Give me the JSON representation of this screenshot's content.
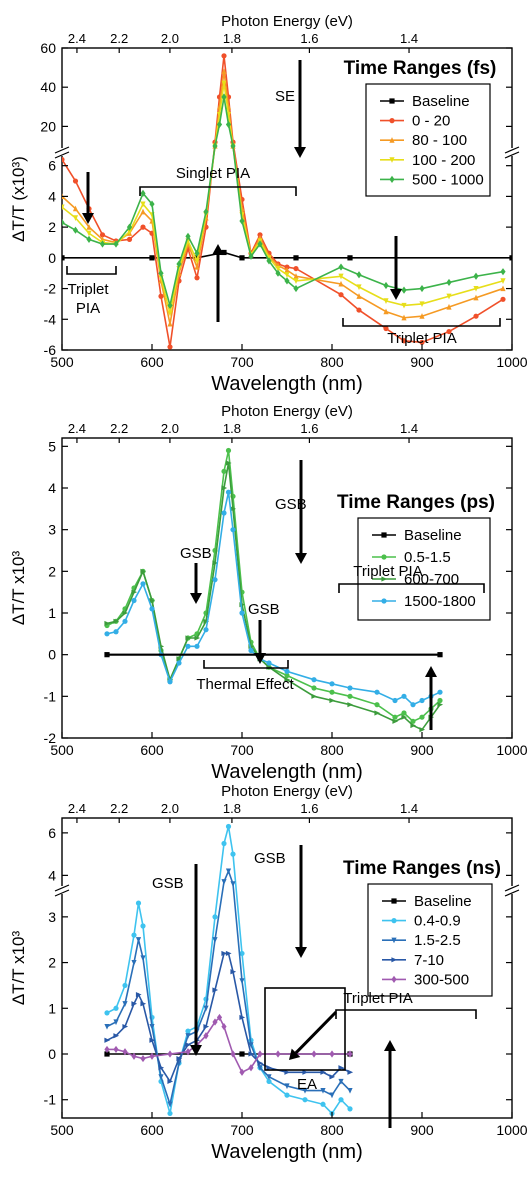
{
  "colors": {
    "baseline": "#000000",
    "fs_0_20": "#f0502a",
    "fs_80_100": "#f59a23",
    "fs_100_200": "#e7de1a",
    "fs_500_1000": "#3cb34a",
    "ps_05_15": "#4cc04c",
    "ps_600_700": "#3c9c3c",
    "ps_1500_1800": "#33aee6",
    "ns_04_09": "#3ec3ef",
    "ns_15_25": "#2a6fb8",
    "ns_7_10": "#2958a6",
    "ns_300_500": "#a05ab0"
  },
  "chart_data": [
    {
      "type": "line",
      "top_axis_label": "Photon Energy (eV)",
      "top_ticks": [
        "2.4",
        "2.2",
        "2.0",
        "1.8",
        "1.6",
        "1.4"
      ],
      "xlabel": "Wavelength (nm)",
      "ylabel": "ΔT/T (x10³)",
      "xlim": [
        500,
        1000
      ],
      "x_ticks": [
        500,
        600,
        700,
        800,
        900,
        1000
      ],
      "ylim_lower": [
        -6,
        6.5
      ],
      "ylim_upper": [
        10,
        60
      ],
      "y_ticks_lower": [
        -6,
        -4,
        -2,
        0,
        2,
        4,
        6
      ],
      "y_ticks_upper": [
        20,
        40,
        60
      ],
      "axis_break": true,
      "legend_title": "Time Ranges (fs)",
      "legend_position": "top-right",
      "annotations": [
        "SE",
        "Singlet PIA",
        "Triplet PIA",
        "Triplet PIA"
      ],
      "annotation_lines": [
        [
          "Triplet",
          "PIA"
        ]
      ],
      "series": [
        {
          "name": "Baseline",
          "color": "#000000",
          "marker": "square",
          "x": [
            500,
            600,
            650,
            680,
            700,
            760,
            820,
            1000
          ],
          "y": [
            0,
            0,
            0,
            0.35,
            0,
            0,
            0,
            0
          ]
        },
        {
          "name": "0 - 20",
          "color": "#f0502a",
          "marker": "circle",
          "x": [
            500,
            515,
            530,
            545,
            560,
            575,
            590,
            600,
            610,
            620,
            630,
            640,
            650,
            660,
            670,
            675,
            680,
            685,
            690,
            700,
            710,
            720,
            730,
            740,
            750,
            760,
            810,
            830,
            860,
            880,
            900,
            930,
            960,
            990
          ],
          "y": [
            6.4,
            5.0,
            3.2,
            1.5,
            1.1,
            1.2,
            2.0,
            1.6,
            -2.5,
            -5.8,
            -1.5,
            0.6,
            -1.3,
            2.0,
            12,
            35,
            56,
            35,
            12,
            3.8,
            0.3,
            1.5,
            0.3,
            -0.4,
            -0.6,
            -0.7,
            -2.4,
            -3.4,
            -4.6,
            -5.4,
            -5.5,
            -4.8,
            -3.8,
            -2.7
          ]
        },
        {
          "name": "80 - 100",
          "color": "#f59a23",
          "marker": "triangle-up",
          "x": [
            500,
            515,
            530,
            545,
            560,
            575,
            590,
            600,
            610,
            620,
            630,
            640,
            650,
            660,
            670,
            675,
            680,
            685,
            690,
            700,
            710,
            720,
            730,
            740,
            750,
            760,
            810,
            830,
            860,
            880,
            900,
            930,
            960,
            990
          ],
          "y": [
            4.0,
            3.2,
            2.0,
            1.2,
            1.0,
            1.6,
            3.0,
            2.4,
            -1.5,
            -4.3,
            -1.0,
            0.9,
            -0.6,
            2.6,
            10,
            30,
            48,
            30,
            10,
            3.2,
            0.2,
            1.3,
            0.1,
            -0.5,
            -0.8,
            -1.2,
            -1.7,
            -2.5,
            -3.5,
            -3.9,
            -3.8,
            -3.2,
            -2.6,
            -2.0
          ]
        },
        {
          "name": "100 - 200",
          "color": "#e7de1a",
          "marker": "triangle-down",
          "x": [
            500,
            515,
            530,
            545,
            560,
            575,
            590,
            600,
            610,
            620,
            630,
            640,
            650,
            660,
            670,
            675,
            680,
            685,
            690,
            700,
            710,
            720,
            730,
            740,
            750,
            760,
            810,
            830,
            860,
            880,
            900,
            930,
            960,
            990
          ],
          "y": [
            3.3,
            2.6,
            1.6,
            1.0,
            0.9,
            1.7,
            3.5,
            2.8,
            -1.3,
            -3.6,
            -0.7,
            1.1,
            -0.2,
            2.8,
            9,
            26,
            42,
            26,
            9,
            2.8,
            0.2,
            1.1,
            0.0,
            -0.7,
            -1.1,
            -1.5,
            -1.2,
            -1.9,
            -2.8,
            -3.1,
            -3.0,
            -2.5,
            -2.0,
            -1.5
          ]
        },
        {
          "name": "500 - 1000",
          "color": "#3cb34a",
          "marker": "diamond",
          "x": [
            500,
            515,
            530,
            545,
            560,
            575,
            590,
            600,
            610,
            620,
            630,
            640,
            650,
            660,
            670,
            675,
            680,
            685,
            690,
            700,
            710,
            720,
            730,
            740,
            750,
            760,
            810,
            830,
            860,
            880,
            900,
            930,
            960,
            990
          ],
          "y": [
            2.3,
            1.8,
            1.2,
            0.9,
            0.9,
            2.0,
            4.2,
            3.5,
            -1.0,
            -3.1,
            -0.4,
            1.4,
            0.3,
            3.0,
            8,
            21,
            35,
            21,
            8,
            2.4,
            0.1,
            0.9,
            -0.2,
            -1.0,
            -1.5,
            -2.0,
            -0.6,
            -1.1,
            -1.8,
            -2.1,
            -2.0,
            -1.6,
            -1.2,
            -0.9
          ]
        }
      ]
    },
    {
      "type": "line",
      "top_axis_label": "Photon Energy (eV)",
      "top_ticks": [
        "2.4",
        "2.2",
        "2.0",
        "1.8",
        "1.6",
        "1.4"
      ],
      "xlabel": "Wavelength (nm)",
      "ylabel": "ΔT/T x10³",
      "xlim": [
        500,
        1000
      ],
      "ylim": [
        -2,
        5.2
      ],
      "x_ticks": [
        500,
        600,
        700,
        800,
        900,
        1000
      ],
      "y_ticks": [
        -2,
        -1,
        0,
        1,
        2,
        3,
        4,
        5
      ],
      "legend_title": "Time Ranges (ps)",
      "legend_position": "top-right",
      "annotations": [
        "GSB",
        "GSB",
        "GSB",
        "Thermal Effect",
        "Triplet PIA"
      ],
      "series": [
        {
          "name": "Baseline",
          "color": "#000000",
          "marker": "square",
          "x": [
            550,
            920
          ],
          "y": [
            0,
            0
          ]
        },
        {
          "name": "0.5-1.5",
          "color": "#4cc04c",
          "marker": "circle",
          "x": [
            550,
            560,
            570,
            580,
            590,
            600,
            610,
            620,
            630,
            640,
            650,
            660,
            670,
            680,
            685,
            690,
            700,
            710,
            720,
            730,
            750,
            780,
            800,
            820,
            850,
            870,
            880,
            890,
            900,
            910,
            920
          ],
          "y": [
            0.7,
            0.8,
            1.1,
            1.6,
            2.0,
            1.3,
            0.1,
            -0.6,
            -0.1,
            0.4,
            0.5,
            1.0,
            2.5,
            4.4,
            4.9,
            3.8,
            1.5,
            0.3,
            -0.1,
            -0.3,
            -0.5,
            -0.8,
            -0.9,
            -1.0,
            -1.2,
            -1.5,
            -1.4,
            -1.6,
            -1.5,
            -1.3,
            -1.1
          ]
        },
        {
          "name": "600-700",
          "color": "#3c9c3c",
          "marker": "triangle-right",
          "x": [
            550,
            560,
            570,
            580,
            590,
            600,
            610,
            620,
            630,
            640,
            650,
            660,
            670,
            680,
            685,
            690,
            700,
            710,
            720,
            730,
            750,
            780,
            800,
            820,
            850,
            870,
            880,
            890,
            900,
            910,
            920
          ],
          "y": [
            0.75,
            0.8,
            1.0,
            1.5,
            2.0,
            1.3,
            0.2,
            -0.6,
            -0.1,
            0.4,
            0.4,
            0.8,
            2.2,
            4.0,
            4.6,
            3.5,
            1.2,
            0.2,
            -0.1,
            -0.3,
            -0.6,
            -1.0,
            -1.1,
            -1.2,
            -1.4,
            -1.6,
            -1.5,
            -1.7,
            -1.8,
            -1.5,
            -1.2
          ]
        },
        {
          "name": "1500-1800",
          "color": "#33aee6",
          "marker": "circle",
          "x": [
            550,
            560,
            570,
            580,
            590,
            600,
            610,
            620,
            630,
            640,
            650,
            660,
            670,
            680,
            685,
            690,
            700,
            710,
            720,
            730,
            750,
            780,
            800,
            820,
            850,
            870,
            880,
            890,
            900,
            910,
            920
          ],
          "y": [
            0.5,
            0.55,
            0.8,
            1.3,
            1.7,
            1.1,
            0.0,
            -0.65,
            -0.2,
            0.2,
            0.2,
            0.6,
            1.8,
            3.4,
            3.9,
            3.0,
            1.0,
            0.1,
            -0.1,
            -0.2,
            -0.4,
            -0.6,
            -0.7,
            -0.8,
            -0.9,
            -1.1,
            -1.0,
            -1.2,
            -1.1,
            -1.0,
            -0.9
          ]
        }
      ]
    },
    {
      "type": "line",
      "top_axis_label": "Photon Energy (eV)",
      "top_ticks": [
        "2.4",
        "2.2",
        "2.0",
        "1.8",
        "1.6",
        "1.4"
      ],
      "xlabel": "Wavelength (nm)",
      "ylabel": "ΔT/T x10³",
      "xlim": [
        500,
        1000
      ],
      "ylim_lower": [
        -1.4,
        3.5
      ],
      "ylim_upper": [
        3.5,
        6.7
      ],
      "x_ticks": [
        500,
        600,
        700,
        800,
        900,
        1000
      ],
      "y_ticks_lower": [
        -1,
        0,
        1,
        2,
        3
      ],
      "y_ticks_upper": [
        4,
        6
      ],
      "axis_break": true,
      "legend_title": "Time Ranges (ns)",
      "legend_position": "top-right",
      "annotations": [
        "GSB",
        "GSB",
        "Triplet PIA",
        "EA"
      ],
      "series": [
        {
          "name": "Baseline",
          "color": "#000000",
          "marker": "square",
          "x": [
            550,
            700,
            820
          ],
          "y": [
            0,
            0,
            0
          ]
        },
        {
          "name": "0.4-0.9",
          "color": "#3ec3ef",
          "marker": "circle",
          "x": [
            550,
            560,
            570,
            580,
            585,
            590,
            600,
            610,
            620,
            630,
            640,
            650,
            660,
            670,
            680,
            685,
            690,
            700,
            710,
            720,
            730,
            750,
            770,
            790,
            800,
            810,
            820
          ],
          "y": [
            0.9,
            1.0,
            1.5,
            2.6,
            3.3,
            2.8,
            0.8,
            -0.6,
            -1.3,
            -0.2,
            0.5,
            0.6,
            1.2,
            3.0,
            5.5,
            6.3,
            5.0,
            2.2,
            0.3,
            -0.3,
            -0.6,
            -0.9,
            -1.0,
            -1.1,
            -1.3,
            -1.0,
            -1.2
          ]
        },
        {
          "name": "1.5-2.5",
          "color": "#2a6fb8",
          "marker": "triangle-down",
          "x": [
            550,
            560,
            570,
            580,
            585,
            590,
            600,
            610,
            620,
            630,
            640,
            650,
            660,
            670,
            680,
            685,
            690,
            700,
            710,
            720,
            730,
            750,
            770,
            790,
            800,
            810,
            820
          ],
          "y": [
            0.6,
            0.7,
            1.1,
            2.0,
            2.5,
            2.1,
            0.6,
            -0.5,
            -1.1,
            -0.2,
            0.4,
            0.5,
            1.0,
            2.5,
            3.7,
            4.2,
            3.6,
            1.6,
            0.2,
            -0.3,
            -0.5,
            -0.7,
            -0.8,
            -0.8,
            -0.9,
            -0.6,
            -0.8
          ]
        },
        {
          "name": "7-10",
          "color": "#2958a6",
          "marker": "triangle-right",
          "x": [
            550,
            560,
            570,
            580,
            585,
            590,
            600,
            610,
            620,
            630,
            640,
            650,
            660,
            670,
            680,
            685,
            690,
            700,
            710,
            720,
            730,
            750,
            770,
            790,
            800,
            810,
            820
          ],
          "y": [
            0.3,
            0.4,
            0.6,
            1.1,
            1.3,
            1.1,
            0.3,
            -0.3,
            -0.6,
            -0.1,
            0.2,
            0.3,
            0.6,
            1.4,
            2.2,
            2.2,
            1.8,
            0.8,
            0.0,
            -0.2,
            -0.3,
            -0.4,
            -0.4,
            -0.4,
            -0.5,
            -0.3,
            -0.4
          ]
        },
        {
          "name": "300-500",
          "color": "#a05ab0",
          "marker": "diamond",
          "x": [
            550,
            560,
            570,
            580,
            590,
            600,
            620,
            640,
            650,
            660,
            670,
            675,
            680,
            690,
            700,
            710,
            720,
            740,
            760,
            780,
            800,
            820
          ],
          "y": [
            0.1,
            0.1,
            0.05,
            -0.05,
            -0.1,
            -0.05,
            0.0,
            0.05,
            0.2,
            0.4,
            0.7,
            0.8,
            0.6,
            0.0,
            -0.4,
            -0.3,
            0.0,
            0.0,
            0.0,
            0.0,
            0.0,
            0.0
          ]
        }
      ]
    }
  ]
}
